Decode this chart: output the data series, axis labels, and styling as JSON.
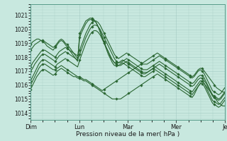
{
  "bg_color": "#c8e8df",
  "grid_color": "#a0c8c0",
  "line_color": "#2a6632",
  "marker_color": "#2a6632",
  "ylabel_values": [
    1014,
    1015,
    1016,
    1017,
    1018,
    1019,
    1020,
    1021
  ],
  "ylim": [
    1013.5,
    1021.8
  ],
  "xlabel": "Pression niveau de la mer( hPa )",
  "day_ticks": [
    0,
    24,
    48,
    72,
    96
  ],
  "day_labels": [
    "Dim",
    "Lun",
    "Mar",
    "Mer",
    "Je"
  ],
  "series": [
    [
      1015.7,
      1016.0,
      1016.3,
      1016.6,
      1016.8,
      1017.0,
      1017.1,
      1017.1,
      1017.0,
      1016.9,
      1016.8,
      1016.7,
      1016.8,
      1017.0,
      1017.1,
      1017.2,
      1017.1,
      1017.0,
      1016.9,
      1016.8,
      1016.7,
      1016.6,
      1016.6,
      1016.5,
      1016.5,
      1016.4,
      1016.3,
      1016.3,
      1016.2,
      1016.1,
      1016.0,
      1015.9,
      1015.8,
      1015.7,
      1015.6,
      1015.5,
      1015.4,
      1015.3,
      1015.2,
      1015.1,
      1015.0,
      1015.0,
      1015.0,
      1015.0,
      1015.0,
      1015.1,
      1015.2,
      1015.3,
      1015.4,
      1015.5,
      1015.6,
      1015.7,
      1015.8,
      1015.9,
      1016.0,
      1016.1,
      1016.2,
      1016.3,
      1016.4,
      1016.5,
      1016.6,
      1016.7,
      1016.8,
      1016.7,
      1016.6,
      1016.5,
      1016.4,
      1016.3,
      1016.2,
      1016.1,
      1016.0,
      1015.9,
      1015.8,
      1015.7,
      1015.6,
      1015.5,
      1015.4,
      1015.3,
      1015.2,
      1015.1,
      1015.3,
      1015.6,
      1015.9,
      1016.1,
      1016.3,
      1016.1,
      1015.9,
      1015.7,
      1015.5,
      1015.3,
      1015.1,
      1014.9,
      1014.7,
      1014.6,
      1014.5,
      1014.5
    ],
    [
      1016.0,
      1016.3,
      1016.6,
      1016.9,
      1017.2,
      1017.4,
      1017.5,
      1017.5,
      1017.4,
      1017.3,
      1017.2,
      1017.1,
      1017.1,
      1017.2,
      1017.3,
      1017.4,
      1017.3,
      1017.2,
      1017.1,
      1017.0,
      1016.9,
      1016.8,
      1016.7,
      1016.6,
      1016.6,
      1016.5,
      1016.4,
      1016.4,
      1016.3,
      1016.2,
      1016.1,
      1016.0,
      1015.9,
      1015.8,
      1015.7,
      1015.6,
      1015.7,
      1015.8,
      1015.9,
      1016.0,
      1016.1,
      1016.2,
      1016.3,
      1016.4,
      1016.5,
      1016.6,
      1016.7,
      1016.8,
      1016.9,
      1017.0,
      1017.1,
      1017.2,
      1017.3,
      1017.4,
      1017.5,
      1017.6,
      1017.7,
      1017.8,
      1017.9,
      1018.0,
      1018.1,
      1018.2,
      1018.3,
      1018.2,
      1018.1,
      1018.0,
      1017.9,
      1017.8,
      1017.7,
      1017.6,
      1017.5,
      1017.4,
      1017.3,
      1017.2,
      1017.1,
      1017.0,
      1016.9,
      1016.8,
      1016.7,
      1016.6,
      1016.7,
      1016.9,
      1017.1,
      1017.2,
      1017.2,
      1017.0,
      1016.8,
      1016.6,
      1016.4,
      1016.2,
      1016.0,
      1015.8,
      1015.7,
      1015.6,
      1015.5,
      1015.5
    ],
    [
      1016.3,
      1016.6,
      1016.9,
      1017.2,
      1017.5,
      1017.7,
      1017.8,
      1017.8,
      1017.7,
      1017.6,
      1017.5,
      1017.4,
      1017.3,
      1017.5,
      1017.6,
      1017.7,
      1017.8,
      1017.9,
      1017.8,
      1017.7,
      1017.6,
      1017.5,
      1017.4,
      1017.3,
      1017.8,
      1018.2,
      1018.6,
      1019.0,
      1019.3,
      1019.6,
      1019.8,
      1019.9,
      1019.9,
      1019.8,
      1019.6,
      1019.3,
      1019.0,
      1018.7,
      1018.4,
      1018.1,
      1017.8,
      1017.6,
      1017.5,
      1017.4,
      1017.4,
      1017.5,
      1017.6,
      1017.7,
      1017.6,
      1017.5,
      1017.4,
      1017.3,
      1017.2,
      1017.1,
      1017.0,
      1016.9,
      1016.9,
      1016.9,
      1017.0,
      1017.1,
      1017.2,
      1017.3,
      1017.4,
      1017.5,
      1017.4,
      1017.3,
      1017.2,
      1017.1,
      1017.0,
      1016.9,
      1016.8,
      1016.7,
      1016.6,
      1016.5,
      1016.4,
      1016.3,
      1016.2,
      1016.1,
      1016.0,
      1015.9,
      1016.0,
      1016.2,
      1016.4,
      1016.5,
      1016.5,
      1016.3,
      1016.1,
      1015.8,
      1015.5,
      1015.2,
      1015.1,
      1015.0,
      1014.9,
      1015.0,
      1015.2,
      1015.4
    ],
    [
      1017.0,
      1017.2,
      1017.5,
      1017.7,
      1017.9,
      1018.1,
      1018.2,
      1018.2,
      1018.1,
      1018.0,
      1017.9,
      1017.8,
      1017.7,
      1017.9,
      1018.1,
      1018.2,
      1018.3,
      1018.4,
      1018.3,
      1018.2,
      1018.1,
      1018.0,
      1017.9,
      1017.8,
      1018.2,
      1018.6,
      1019.0,
      1019.4,
      1019.7,
      1020.0,
      1020.2,
      1020.3,
      1020.3,
      1020.2,
      1020.0,
      1019.7,
      1019.4,
      1019.1,
      1018.8,
      1018.5,
      1018.2,
      1017.9,
      1017.7,
      1017.6,
      1017.6,
      1017.7,
      1017.8,
      1017.9,
      1017.8,
      1017.7,
      1017.6,
      1017.5,
      1017.4,
      1017.3,
      1017.2,
      1017.1,
      1017.1,
      1017.1,
      1017.2,
      1017.3,
      1017.4,
      1017.5,
      1017.6,
      1017.7,
      1017.6,
      1017.5,
      1017.4,
      1017.3,
      1017.2,
      1017.1,
      1017.0,
      1016.9,
      1016.8,
      1016.7,
      1016.6,
      1016.5,
      1016.4,
      1016.3,
      1016.2,
      1016.1,
      1016.2,
      1016.4,
      1016.6,
      1016.7,
      1016.7,
      1016.5,
      1016.2,
      1015.9,
      1015.6,
      1015.3,
      1015.2,
      1015.1,
      1015.0,
      1015.1,
      1015.3,
      1015.5
    ],
    [
      1017.3,
      1017.6,
      1017.8,
      1018.0,
      1018.2,
      1018.4,
      1018.5,
      1018.5,
      1018.4,
      1018.3,
      1018.2,
      1018.1,
      1018.0,
      1018.2,
      1018.4,
      1018.5,
      1018.6,
      1018.7,
      1018.6,
      1018.5,
      1018.4,
      1018.3,
      1018.2,
      1018.1,
      1018.5,
      1018.9,
      1019.3,
      1019.7,
      1020.0,
      1020.3,
      1020.5,
      1020.6,
      1020.6,
      1020.5,
      1020.3,
      1020.0,
      1019.7,
      1019.4,
      1019.1,
      1018.8,
      1018.5,
      1018.2,
      1018.0,
      1017.9,
      1018.0,
      1018.1,
      1018.2,
      1018.3,
      1018.2,
      1018.1,
      1018.0,
      1017.9,
      1017.8,
      1017.7,
      1017.6,
      1017.5,
      1017.5,
      1017.5,
      1017.6,
      1017.7,
      1017.8,
      1017.9,
      1018.0,
      1018.1,
      1018.0,
      1017.9,
      1017.8,
      1017.7,
      1017.6,
      1017.5,
      1017.4,
      1017.3,
      1017.2,
      1017.1,
      1017.0,
      1016.9,
      1016.8,
      1016.7,
      1016.6,
      1016.5,
      1016.6,
      1016.8,
      1017.0,
      1017.1,
      1017.0,
      1016.8,
      1016.5,
      1016.2,
      1015.9,
      1015.6,
      1015.5,
      1015.4,
      1015.3,
      1015.4,
      1015.6,
      1015.8
    ],
    [
      1018.5,
      1018.7,
      1018.9,
      1019.0,
      1019.1,
      1019.2,
      1019.2,
      1019.1,
      1019.0,
      1018.9,
      1018.8,
      1018.7,
      1018.8,
      1019.0,
      1019.2,
      1019.3,
      1019.2,
      1019.0,
      1018.9,
      1018.7,
      1018.5,
      1018.3,
      1018.1,
      1017.9,
      1019.4,
      1019.8,
      1020.1,
      1020.4,
      1020.6,
      1020.7,
      1020.7,
      1020.6,
      1020.5,
      1020.2,
      1019.9,
      1019.5,
      1019.1,
      1018.7,
      1018.4,
      1018.0,
      1017.8,
      1017.6,
      1017.6,
      1017.6,
      1017.7,
      1017.8,
      1017.7,
      1017.6,
      1017.5,
      1017.4,
      1017.3,
      1017.2,
      1017.1,
      1017.0,
      1016.9,
      1016.8,
      1016.8,
      1016.9,
      1017.0,
      1017.1,
      1017.2,
      1017.3,
      1017.2,
      1017.1,
      1017.0,
      1016.9,
      1016.8,
      1016.7,
      1016.6,
      1016.5,
      1016.4,
      1016.3,
      1016.2,
      1016.1,
      1016.0,
      1015.9,
      1015.8,
      1015.7,
      1015.6,
      1015.5,
      1015.7,
      1015.9,
      1016.1,
      1016.3,
      1016.3,
      1016.1,
      1015.8,
      1015.5,
      1015.2,
      1014.9,
      1014.8,
      1014.7,
      1014.6,
      1014.7,
      1014.9,
      1015.1
    ],
    [
      1018.9,
      1019.1,
      1019.2,
      1019.3,
      1019.3,
      1019.2,
      1019.1,
      1019.0,
      1018.8,
      1018.7,
      1018.6,
      1018.5,
      1018.7,
      1018.9,
      1019.1,
      1019.2,
      1019.1,
      1018.9,
      1018.7,
      1018.5,
      1018.3,
      1018.1,
      1017.9,
      1017.7,
      1019.7,
      1020.0,
      1020.3,
      1020.6,
      1020.7,
      1020.8,
      1020.8,
      1020.7,
      1020.5,
      1020.2,
      1019.8,
      1019.4,
      1019.0,
      1018.6,
      1018.2,
      1017.9,
      1017.6,
      1017.4,
      1017.4,
      1017.4,
      1017.5,
      1017.6,
      1017.5,
      1017.4,
      1017.3,
      1017.2,
      1017.1,
      1017.0,
      1016.9,
      1016.8,
      1016.7,
      1016.6,
      1016.6,
      1016.7,
      1016.8,
      1016.9,
      1017.0,
      1017.1,
      1017.0,
      1016.9,
      1016.8,
      1016.7,
      1016.6,
      1016.5,
      1016.4,
      1016.3,
      1016.2,
      1016.1,
      1016.0,
      1015.9,
      1015.8,
      1015.7,
      1015.6,
      1015.5,
      1015.4,
      1015.3,
      1015.5,
      1015.7,
      1015.9,
      1016.1,
      1016.1,
      1015.9,
      1015.6,
      1015.3,
      1015.0,
      1014.7,
      1014.6,
      1014.5,
      1014.4,
      1014.5,
      1014.7,
      1014.9
    ]
  ],
  "marker_every": 6,
  "linewidth": 0.8,
  "figsize": [
    3.2,
    2.0
  ],
  "dpi": 100
}
